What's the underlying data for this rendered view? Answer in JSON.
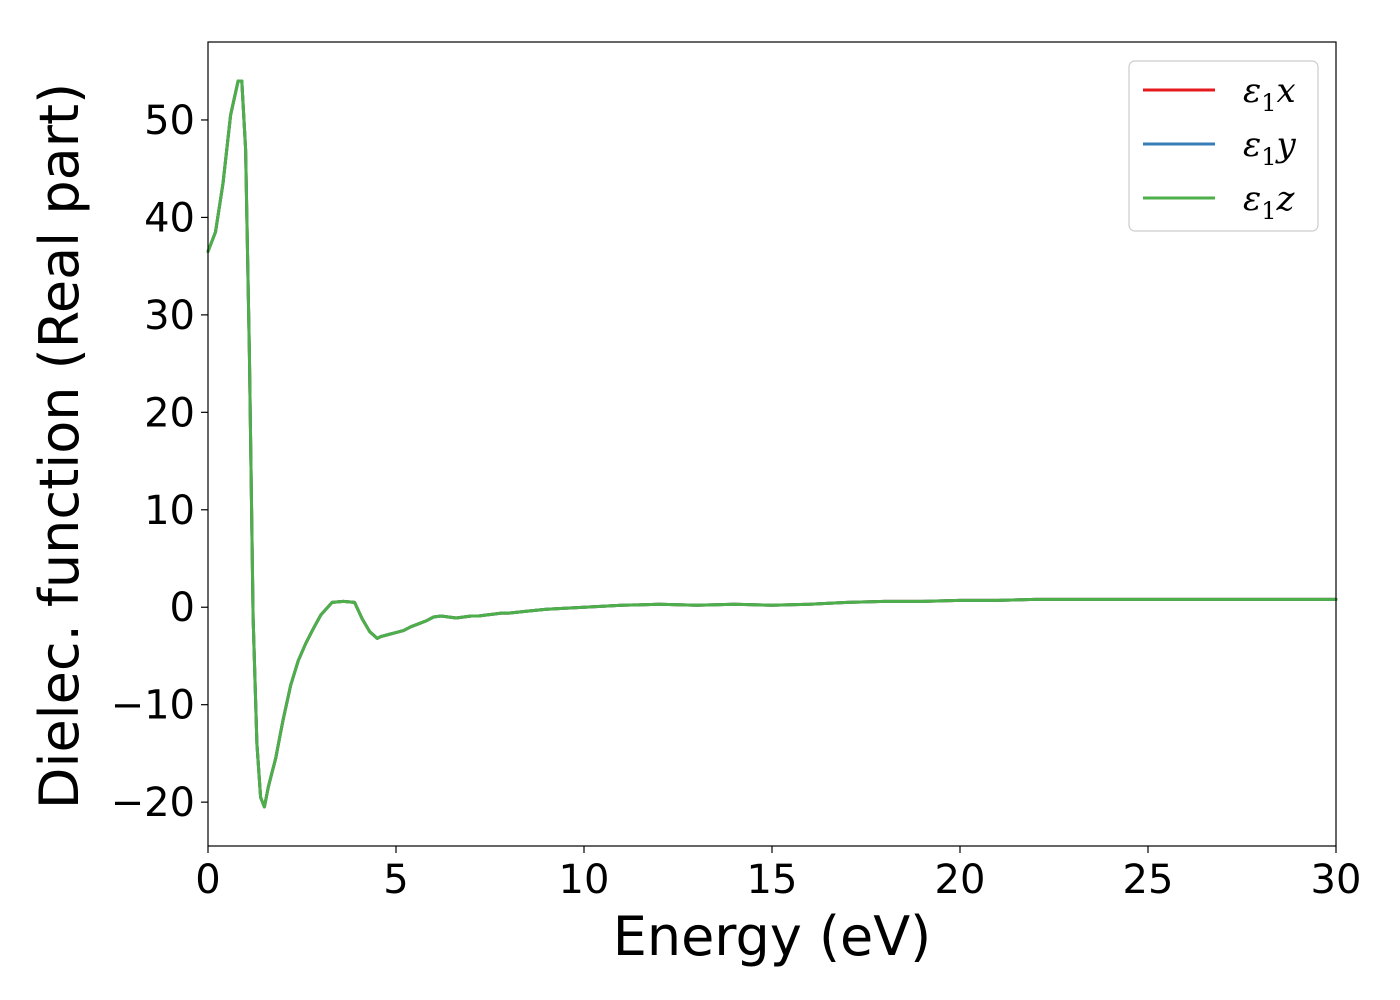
{
  "chart_data": {
    "type": "line",
    "title": "",
    "xlabel": "Energy (eV)",
    "ylabel": "Dielec. function (Real part)",
    "xlim": [
      0,
      30
    ],
    "ylim": [
      -24.5,
      58
    ],
    "xticks": [
      0,
      5,
      10,
      15,
      20,
      25,
      30
    ],
    "xtick_labels": [
      "0",
      "5",
      "10",
      "15",
      "20",
      "25",
      "30"
    ],
    "yticks": [
      -20,
      -10,
      0,
      10,
      20,
      30,
      40,
      50
    ],
    "ytick_labels": [
      "−20",
      "−10",
      "0",
      "10",
      "20",
      "30",
      "40",
      "50"
    ],
    "grid": false,
    "legend_position": "top-right",
    "x": [
      0,
      0.2,
      0.4,
      0.6,
      0.8,
      0.9,
      1.0,
      1.1,
      1.2,
      1.3,
      1.4,
      1.5,
      1.6,
      1.7,
      1.8,
      1.9,
      2.0,
      2.2,
      2.4,
      2.6,
      2.8,
      3.0,
      3.3,
      3.6,
      3.9,
      4.1,
      4.3,
      4.5,
      4.6,
      4.8,
      5.0,
      5.2,
      5.4,
      5.6,
      5.8,
      6.0,
      6.2,
      6.4,
      6.6,
      6.8,
      7.0,
      7.2,
      7.4,
      7.6,
      7.8,
      8.0,
      8.5,
      9.0,
      10.0,
      11.0,
      12.0,
      13.0,
      14.0,
      15.0,
      16.0,
      17.0,
      18.0,
      19.0,
      20.0,
      21.0,
      22.0,
      23.0,
      24.0,
      25.0,
      26.0,
      27.0,
      28.0,
      29.0,
      30.0
    ],
    "series": [
      {
        "name": "x",
        "color": "#e41a1c",
        "values": [
          36.5,
          38.5,
          43.5,
          50.5,
          54.0,
          54.0,
          47.0,
          26.0,
          -1.0,
          -14.0,
          -19.5,
          -20.5,
          -18.5,
          -17.0,
          -15.5,
          -13.5,
          -11.5,
          -8.0,
          -5.5,
          -3.7,
          -2.2,
          -0.8,
          0.5,
          0.6,
          0.5,
          -1.2,
          -2.5,
          -3.2,
          -3.0,
          -2.8,
          -2.6,
          -2.4,
          -2.0,
          -1.7,
          -1.4,
          -1.0,
          -0.9,
          -1.0,
          -1.1,
          -1.0,
          -0.9,
          -0.9,
          -0.8,
          -0.7,
          -0.6,
          -0.6,
          -0.4,
          -0.2,
          0.0,
          0.2,
          0.3,
          0.2,
          0.3,
          0.2,
          0.3,
          0.5,
          0.6,
          0.6,
          0.7,
          0.7,
          0.8,
          0.8,
          0.8,
          0.8,
          0.8,
          0.8,
          0.8,
          0.8,
          0.8
        ]
      },
      {
        "name": "y",
        "color": "#377eb8",
        "values": [
          36.5,
          38.5,
          43.5,
          50.5,
          54.0,
          54.0,
          47.0,
          26.0,
          -1.0,
          -14.0,
          -19.5,
          -20.5,
          -18.5,
          -17.0,
          -15.5,
          -13.5,
          -11.5,
          -8.0,
          -5.5,
          -3.7,
          -2.2,
          -0.8,
          0.5,
          0.6,
          0.5,
          -1.2,
          -2.5,
          -3.2,
          -3.0,
          -2.8,
          -2.6,
          -2.4,
          -2.0,
          -1.7,
          -1.4,
          -1.0,
          -0.9,
          -1.0,
          -1.1,
          -1.0,
          -0.9,
          -0.9,
          -0.8,
          -0.7,
          -0.6,
          -0.6,
          -0.4,
          -0.2,
          0.0,
          0.2,
          0.3,
          0.2,
          0.3,
          0.2,
          0.3,
          0.5,
          0.6,
          0.6,
          0.7,
          0.7,
          0.8,
          0.8,
          0.8,
          0.8,
          0.8,
          0.8,
          0.8,
          0.8,
          0.8
        ]
      },
      {
        "name": "z",
        "color": "#4daf4a",
        "values": [
          36.5,
          38.5,
          43.5,
          50.5,
          54.0,
          54.0,
          47.0,
          26.0,
          -1.0,
          -14.0,
          -19.5,
          -20.5,
          -18.5,
          -17.0,
          -15.5,
          -13.5,
          -11.5,
          -8.0,
          -5.5,
          -3.7,
          -2.2,
          -0.8,
          0.5,
          0.6,
          0.5,
          -1.2,
          -2.5,
          -3.2,
          -3.0,
          -2.8,
          -2.6,
          -2.4,
          -2.0,
          -1.7,
          -1.4,
          -1.0,
          -0.9,
          -1.0,
          -1.1,
          -1.0,
          -0.9,
          -0.9,
          -0.8,
          -0.7,
          -0.6,
          -0.6,
          -0.4,
          -0.2,
          0.0,
          0.2,
          0.3,
          0.2,
          0.3,
          0.2,
          0.3,
          0.5,
          0.6,
          0.6,
          0.7,
          0.7,
          0.8,
          0.8,
          0.8,
          0.8,
          0.8,
          0.8,
          0.8,
          0.8,
          0.8
        ]
      }
    ],
    "legend": {
      "symbol": "ε",
      "subscript": "1",
      "entries": [
        "x",
        "y",
        "z"
      ]
    }
  }
}
